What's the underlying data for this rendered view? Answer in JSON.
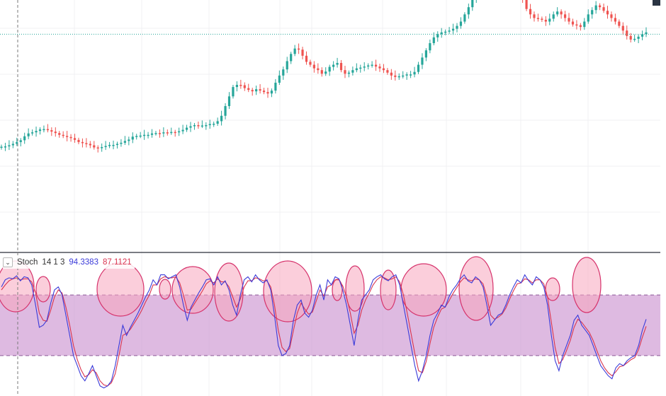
{
  "colors": {
    "up": "#26a69a",
    "down": "#ef5350",
    "k_line": "#3b3bd9",
    "d_line": "#d9344f",
    "band_fill": "#c990cf",
    "circle_fill": "#f7a6bd",
    "circle_stroke": "#d6336c",
    "price_line": "#26a69a",
    "grid": "#f0f1f3",
    "crosshair": "#7a7a7a"
  },
  "indicator": {
    "name": "Stoch",
    "params": "14 1 3",
    "k_value": "94.3383",
    "d_value": "87.1121"
  },
  "chart_data": [
    {
      "type": "candlestick",
      "title": "",
      "ylim": [
        1000,
        1700
      ],
      "price_line": 1605,
      "closes": [
        1292,
        1293,
        1296,
        1300,
        1305,
        1310,
        1321,
        1329,
        1332,
        1336,
        1340,
        1341,
        1338,
        1334,
        1330,
        1325,
        1322,
        1319,
        1316,
        1311,
        1305,
        1302,
        1300,
        1296,
        1290,
        1288,
        1291,
        1294,
        1297,
        1297,
        1300,
        1303,
        1308,
        1312,
        1320,
        1322,
        1323,
        1325,
        1325,
        1329,
        1330,
        1329,
        1332,
        1331,
        1333,
        1332,
        1335,
        1339,
        1345,
        1349,
        1352,
        1350,
        1351,
        1352,
        1355,
        1356,
        1363,
        1378,
        1405,
        1432,
        1458,
        1464,
        1463,
        1455,
        1450,
        1446,
        1452,
        1448,
        1444,
        1440,
        1448,
        1470,
        1490,
        1507,
        1530,
        1550,
        1565,
        1562,
        1545,
        1528,
        1520,
        1510,
        1505,
        1495,
        1501,
        1514,
        1520,
        1525,
        1505,
        1495,
        1498,
        1505,
        1510,
        1512,
        1515,
        1518,
        1520,
        1515,
        1510,
        1505,
        1498,
        1490,
        1486,
        1488,
        1490,
        1493,
        1493,
        1500,
        1520,
        1540,
        1560,
        1580,
        1596,
        1605,
        1610,
        1612,
        1615,
        1620,
        1628,
        1640,
        1660,
        1680,
        1700,
        1720,
        1740,
        1755,
        1770,
        1769,
        1765,
        1768,
        1775,
        1772,
        1758,
        1740,
        1725,
        1700,
        1675,
        1660,
        1650,
        1648,
        1645,
        1640,
        1648,
        1660,
        1668,
        1660,
        1650,
        1640,
        1632,
        1630,
        1625,
        1640,
        1660,
        1672,
        1685,
        1680,
        1670,
        1660,
        1650,
        1640,
        1628,
        1615,
        1600,
        1590,
        1592,
        1598,
        1605,
        1610
      ]
    },
    {
      "type": "line",
      "title": "",
      "ylim": [
        -20,
        120
      ],
      "band": [
        20,
        80
      ],
      "series": [
        {
          "name": "",
          "values": [
            88,
            95,
            97,
            96,
            99,
            94,
            98,
            97,
            90,
            70,
            48,
            50,
            55,
            72,
            85,
            88,
            80,
            60,
            40,
            20,
            10,
            0,
            -5,
            2,
            10,
            0,
            -10,
            -12,
            -10,
            -5,
            10,
            30,
            50,
            40,
            48,
            55,
            62,
            70,
            78,
            85,
            95,
            90,
            100,
            100,
            96,
            98,
            100,
            88,
            70,
            55,
            68,
            75,
            82,
            88,
            95,
            96,
            90,
            98,
            90,
            94,
            85,
            70,
            60,
            80,
            95,
            98,
            93,
            100,
            95,
            92,
            95,
            85,
            60,
            30,
            20,
            22,
            30,
            55,
            70,
            75,
            62,
            58,
            65,
            80,
            90,
            75,
            95,
            90,
            98,
            96,
            85,
            70,
            50,
            30,
            55,
            75,
            80,
            85,
            95,
            98,
            100,
            96,
            94,
            98,
            100,
            90,
            70,
            50,
            30,
            10,
            -5,
            5,
            20,
            40,
            55,
            62,
            70,
            68,
            78,
            85,
            90,
            96,
            100,
            94,
            92,
            98,
            95,
            88,
            70,
            50,
            55,
            60,
            62,
            70,
            80,
            88,
            95,
            92,
            100,
            94,
            90,
            98,
            95,
            88,
            70,
            40,
            15,
            5,
            20,
            30,
            40,
            55,
            60,
            50,
            45,
            40,
            30,
            20,
            10,
            5,
            0,
            -3,
            8,
            12,
            10,
            15,
            18,
            20,
            30,
            45,
            56
          ]
        },
        {
          "name": "",
          "values": [
            85,
            90,
            94,
            96,
            97,
            95,
            96,
            96,
            93,
            82,
            62,
            55,
            54,
            65,
            78,
            85,
            82,
            68,
            50,
            30,
            16,
            6,
            -1,
            1,
            6,
            3,
            -5,
            -9,
            -10,
            -7,
            2,
            20,
            40,
            42,
            46,
            52,
            58,
            65,
            73,
            80,
            90,
            90,
            96,
            98,
            97,
            97,
            98,
            92,
            80,
            65,
            66,
            72,
            78,
            84,
            91,
            94,
            92,
            96,
            93,
            93,
            88,
            78,
            68,
            76,
            88,
            94,
            94,
            97,
            96,
            94,
            94,
            88,
            70,
            45,
            28,
            24,
            27,
            45,
            62,
            72,
            66,
            61,
            63,
            74,
            85,
            79,
            88,
            90,
            95,
            95,
            89,
            78,
            62,
            42,
            50,
            65,
            75,
            82,
            90,
            95,
            98,
            97,
            95,
            96,
            98,
            93,
            80,
            62,
            42,
            22,
            5,
            3,
            14,
            32,
            48,
            58,
            66,
            68,
            74,
            81,
            87,
            93,
            97,
            95,
            94,
            96,
            95,
            91,
            78,
            60,
            56,
            58,
            61,
            67,
            76,
            84,
            91,
            92,
            96,
            95,
            92,
            95,
            95,
            91,
            78,
            53,
            28,
            12,
            16,
            25,
            35,
            48,
            56,
            53,
            48,
            43,
            35,
            25,
            15,
            8,
            3,
            0,
            4,
            9,
            10,
            13,
            16,
            18,
            26,
            38,
            49
          ]
        }
      ]
    }
  ]
}
